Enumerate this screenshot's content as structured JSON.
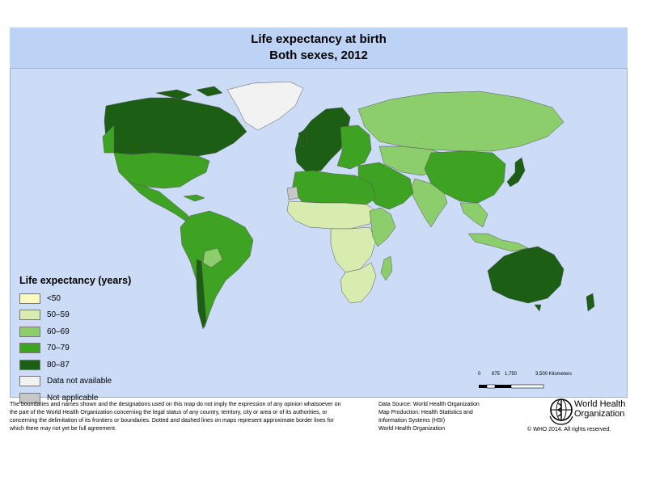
{
  "map": {
    "title_line1": "Life expectancy at birth",
    "title_line2": "Both sexes, 2012"
  },
  "legend": {
    "title": "Life expectancy (years)",
    "items": [
      {
        "label": "<50",
        "color": "#fafac0"
      },
      {
        "label": "50–59",
        "color": "#d8ecb0"
      },
      {
        "label": "60–69",
        "color": "#8ccd6c"
      },
      {
        "label": "70–79",
        "color": "#3ea322"
      },
      {
        "label": "80–87",
        "color": "#1b5e14"
      },
      {
        "label": "Data not available",
        "color": "#f2f2f2"
      },
      {
        "label": "Not applicable",
        "color": "#c8c8c8"
      }
    ]
  },
  "scale": {
    "labels": [
      "0",
      "875",
      "1,750",
      "3,500 Kilometers"
    ]
  },
  "footer": {
    "disclaimer": "The boundaries and names shown and the designations used on this map do not imply the expression of any opinion whatsoever on the part of the World Health Organization concerning the legal status of any country, territory, city or area or of its authorities, or concerning the delimitation of its frontiers or boundaries. Dotted and dashed lines on maps represent approximate border lines for which there may not yet be full agreement.",
    "credit_line1": "Data Source: World Health Organization",
    "credit_line2": "Map Production: Health Statistics and",
    "credit_line3": "Information Systems (HSI)",
    "credit_line4": "World Health Organization",
    "org_name_line1": "World Health",
    "org_name_line2": "Organization",
    "copyright": "© WHO 2014. All rights reserved."
  },
  "regions": [
    {
      "name": "Canada",
      "category": "80–87"
    },
    {
      "name": "Greenland",
      "category": "Data not available"
    },
    {
      "name": "United States",
      "category": "70–79"
    },
    {
      "name": "Mexico & Central America",
      "category": "70–79"
    },
    {
      "name": "South America",
      "category": "70–79"
    },
    {
      "name": "Bolivia",
      "category": "60–69"
    },
    {
      "name": "Chile",
      "category": "80–87"
    },
    {
      "name": "Western Europe",
      "category": "80–87"
    },
    {
      "name": "Eastern Europe",
      "category": "70–79"
    },
    {
      "name": "Russia",
      "category": "60–69"
    },
    {
      "name": "Central Asia",
      "category": "60–69"
    },
    {
      "name": "China",
      "category": "70–79"
    },
    {
      "name": "Japan",
      "category": "80–87"
    },
    {
      "name": "South Asia",
      "category": "60–69"
    },
    {
      "name": "Southeast Asia",
      "category": "60–69"
    },
    {
      "name": "Middle East",
      "category": "70–79"
    },
    {
      "name": "North Africa",
      "category": "70–79"
    },
    {
      "name": "Sahel",
      "category": "50–59"
    },
    {
      "name": "Central Africa",
      "category": "50–59"
    },
    {
      "name": "East Africa",
      "category": "60–69"
    },
    {
      "name": "Southern Africa",
      "category": "50–59"
    },
    {
      "name": "Madagascar",
      "category": "60–69"
    },
    {
      "name": "Australia",
      "category": "80–87"
    },
    {
      "name": "New Zealand",
      "category": "80–87"
    },
    {
      "name": "Western Sahara",
      "category": "Not applicable"
    }
  ]
}
